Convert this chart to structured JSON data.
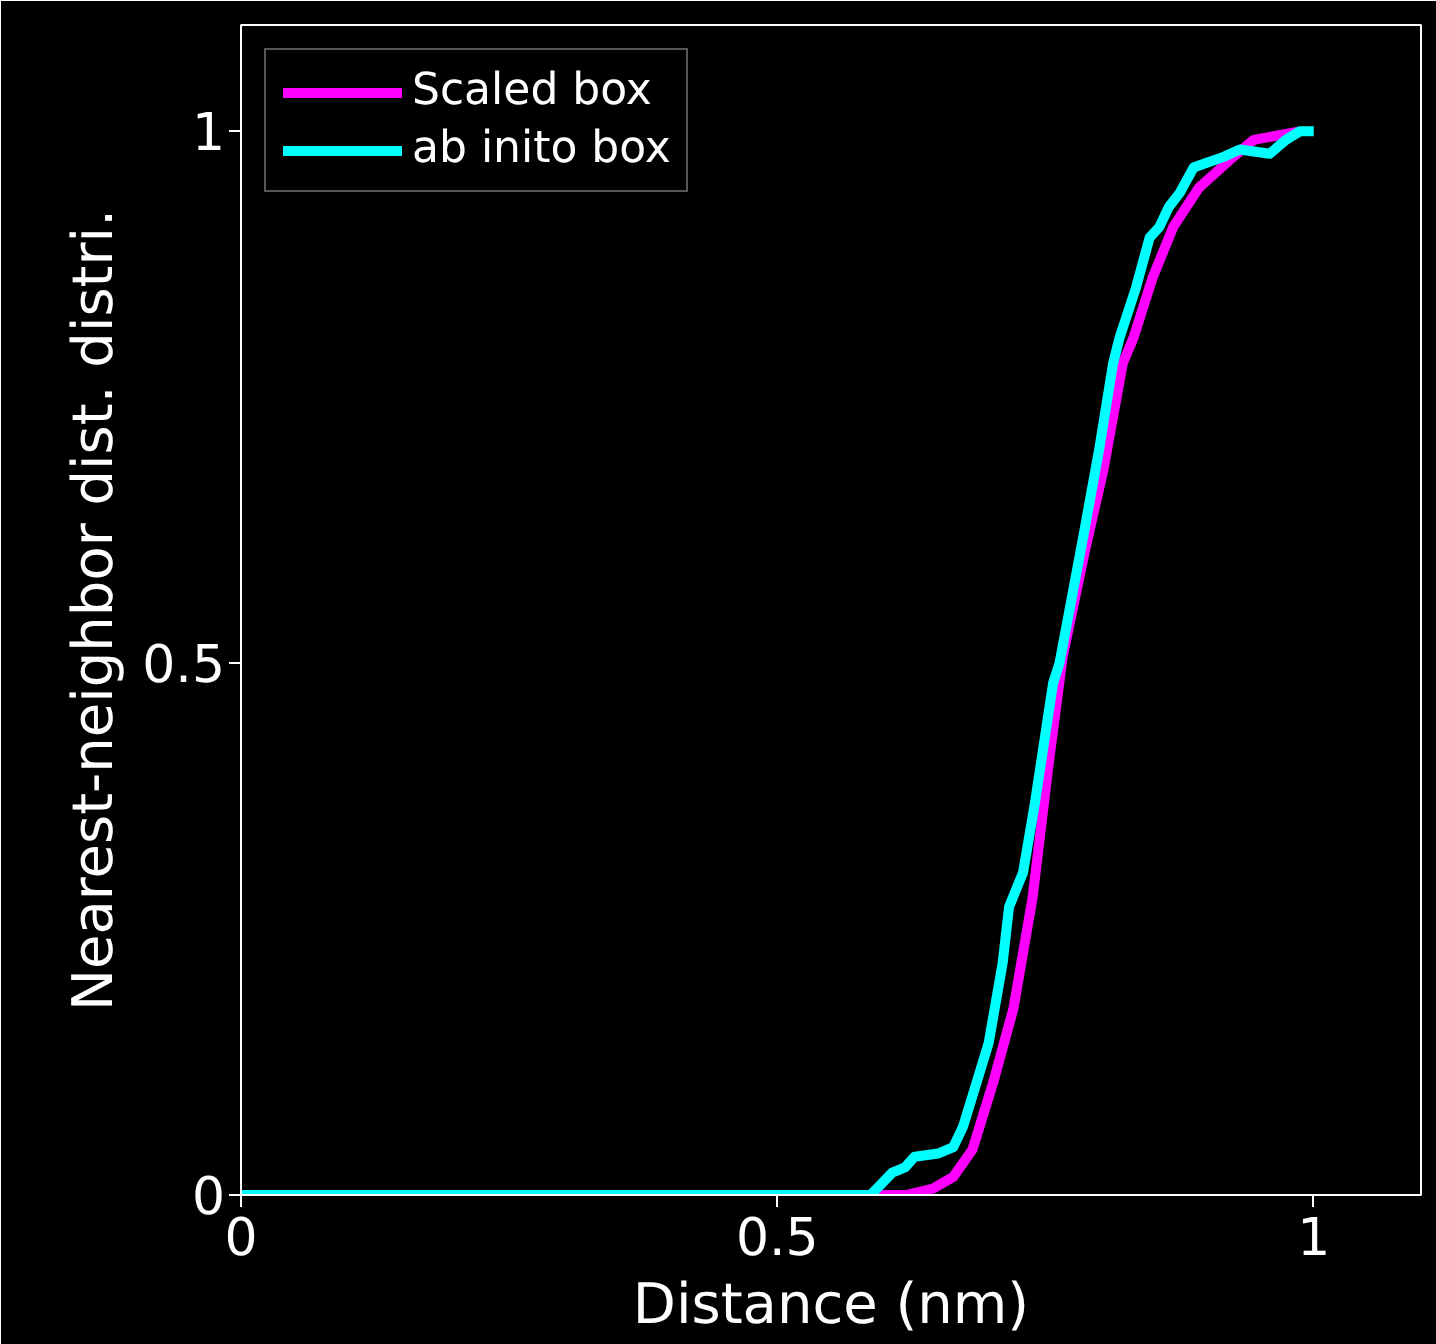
{
  "chart_data": {
    "type": "line",
    "xlabel": "Distance (nm)",
    "ylabel": "Nearest-neighbor dist. distri.",
    "xlim": [
      0,
      1.1
    ],
    "ylim": [
      0,
      1.1
    ],
    "xticks": [
      0,
      0.5,
      1
    ],
    "yticks": [
      0,
      0.5,
      1
    ],
    "grid": false,
    "legend": "top left",
    "line_style": "solid",
    "marker": "none",
    "series": [
      {
        "name": "Scaled box",
        "color": "#ff00ff",
        "x": [
          0,
          0.62,
          0.645,
          0.664,
          0.682,
          0.701,
          0.72,
          0.738,
          0.753,
          0.766,
          0.787,
          0.804,
          0.822,
          0.832,
          0.85,
          0.869,
          0.893,
          0.925,
          0.944,
          0.987
        ],
        "values": [
          0,
          0,
          0.006,
          0.017,
          0.043,
          0.105,
          0.175,
          0.28,
          0.406,
          0.506,
          0.607,
          0.682,
          0.782,
          0.806,
          0.863,
          0.91,
          0.947,
          0.976,
          0.992,
          1.0
        ]
      },
      {
        "name": "ab inito box",
        "color": "#00ffff",
        "x": [
          0,
          0.587,
          0.607,
          0.619,
          0.628,
          0.65,
          0.664,
          0.673,
          0.684,
          0.697,
          0.71,
          0.716,
          0.729,
          0.74,
          0.757,
          0.763,
          0.785,
          0.8,
          0.813,
          0.819,
          0.834,
          0.847,
          0.856,
          0.865,
          0.875,
          0.888,
          0.899,
          0.916,
          0.931,
          0.959,
          0.974,
          0.987,
          1.0
        ],
        "values": [
          0,
          0,
          0.021,
          0.026,
          0.036,
          0.039,
          0.045,
          0.064,
          0.1,
          0.143,
          0.218,
          0.271,
          0.303,
          0.368,
          0.481,
          0.5,
          0.618,
          0.701,
          0.782,
          0.806,
          0.852,
          0.9,
          0.91,
          0.929,
          0.942,
          0.966,
          0.97,
          0.976,
          0.983,
          0.979,
          0.992,
          1.0,
          1.0
        ]
      }
    ]
  }
}
